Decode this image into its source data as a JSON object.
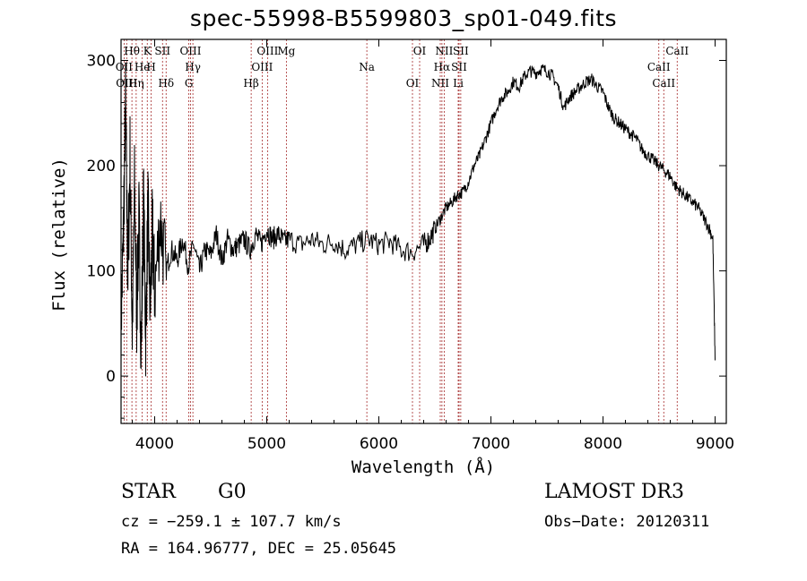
{
  "chart_data": {
    "type": "line",
    "title": "spec-55998-B5599803_sp01-049.fits",
    "xlabel": "Wavelength (Å)",
    "ylabel": "Flux (relative)",
    "xlim": [
      3700,
      9100
    ],
    "ylim": [
      -45,
      320
    ],
    "x_ticks": [
      4000,
      5000,
      6000,
      7000,
      8000,
      9000
    ],
    "y_ticks": [
      0,
      100,
      200,
      300
    ],
    "series": [
      {
        "name": "flux",
        "x": [
          3700,
          3720,
          3740,
          3760,
          3780,
          3800,
          3820,
          3840,
          3860,
          3880,
          3900,
          3920,
          3940,
          3960,
          3980,
          4000,
          4050,
          4100,
          4150,
          4200,
          4250,
          4300,
          4350,
          4400,
          4450,
          4500,
          4550,
          4600,
          4650,
          4700,
          4750,
          4800,
          4850,
          4900,
          4950,
          5000,
          5050,
          5100,
          5150,
          5200,
          5300,
          5400,
          5500,
          5600,
          5700,
          5800,
          5900,
          6000,
          6100,
          6200,
          6300,
          6400,
          6450,
          6500,
          6550,
          6600,
          6650,
          6700,
          6750,
          6800,
          6850,
          6900,
          6950,
          7000,
          7050,
          7100,
          7150,
          7200,
          7250,
          7300,
          7350,
          7400,
          7450,
          7500,
          7550,
          7600,
          7650,
          7700,
          7750,
          7800,
          7850,
          7900,
          7950,
          8000,
          8050,
          8100,
          8150,
          8200,
          8250,
          8300,
          8350,
          8400,
          8450,
          8500,
          8550,
          8600,
          8650,
          8700,
          8750,
          8800,
          8850,
          8900,
          8950,
          8980,
          9000
        ],
        "y": [
          50,
          130,
          260,
          90,
          210,
          40,
          180,
          60,
          150,
          20,
          170,
          40,
          160,
          60,
          140,
          80,
          150,
          100,
          120,
          110,
          130,
          105,
          125,
          100,
          120,
          115,
          135,
          110,
          130,
          120,
          125,
          130,
          120,
          135,
          125,
          140,
          130,
          135,
          128,
          130,
          125,
          130,
          125,
          128,
          120,
          125,
          130,
          125,
          128,
          120,
          118,
          125,
          130,
          140,
          150,
          160,
          165,
          172,
          175,
          185,
          200,
          210,
          225,
          240,
          255,
          265,
          270,
          280,
          275,
          285,
          290,
          288,
          292,
          290,
          285,
          275,
          255,
          265,
          270,
          275,
          280,
          282,
          275,
          270,
          255,
          245,
          240,
          235,
          230,
          225,
          215,
          210,
          205,
          200,
          195,
          190,
          180,
          175,
          170,
          165,
          160,
          150,
          140,
          130,
          15
        ]
      }
    ],
    "spectral_lines": [
      {
        "label": "Hθ",
        "x": 3797
      },
      {
        "label": "OII",
        "x": 3727
      },
      {
        "label": "OIII",
        "x": 3750
      },
      {
        "label": "K",
        "x": 3934
      },
      {
        "label": "He",
        "x": 3889
      },
      {
        "label": "Hη",
        "x": 3835
      },
      {
        "label": "SII",
        "x": 4070
      },
      {
        "label": "H",
        "x": 3969
      },
      {
        "label": "Hδ",
        "x": 4102
      },
      {
        "label": "OIII",
        "x": 4320
      },
      {
        "label": "Hγ",
        "x": 4341
      },
      {
        "label": "G",
        "x": 4305
      },
      {
        "label": "OIII",
        "x": 5007
      },
      {
        "label": "OIII",
        "x": 4959
      },
      {
        "label": "Hβ",
        "x": 4861
      },
      {
        "label": "Mg",
        "x": 5175
      },
      {
        "label": "Na",
        "x": 5893
      },
      {
        "label": "OI",
        "x": 6300
      },
      {
        "label": "OI",
        "x": 6364
      },
      {
        "label": "Hα",
        "x": 6563
      },
      {
        "label": "NII",
        "x": 6548
      },
      {
        "label": "NII",
        "x": 6583
      },
      {
        "label": "SII",
        "x": 6716
      },
      {
        "label": "Li",
        "x": 6708
      },
      {
        "label": "SII",
        "x": 6731
      },
      {
        "label": "CaII",
        "x": 8498
      },
      {
        "label": "CaII",
        "x": 8542
      },
      {
        "label": "CaII",
        "x": 8662
      }
    ]
  },
  "info": {
    "class": "STAR",
    "subclass": "G0",
    "survey": "LAMOST DR3",
    "cz": "cz = −259.1 ± 107.7 km/s",
    "obs_date": "Obs−Date: 20120311",
    "coords": "RA = 164.96777, DEC =  25.05645"
  },
  "colors": {
    "line": "#000000",
    "marker": "#a52a2a"
  }
}
